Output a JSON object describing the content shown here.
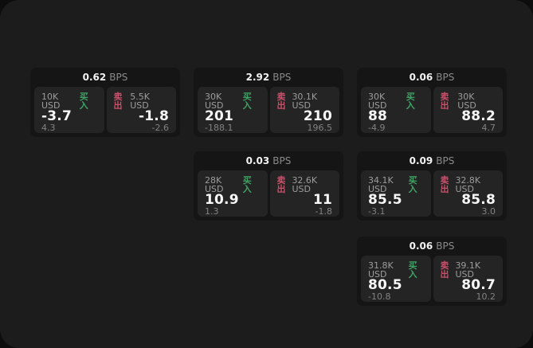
{
  "labels": {
    "bps_unit": "BPS",
    "buy": "买入",
    "sell": "卖出"
  },
  "colors": {
    "outer_background": "#0d0d0d",
    "panel_background": "#1c1c1c",
    "card_background": "#151515",
    "tile_background": "#242424",
    "buy_accent": "#3fa464",
    "sell_accent": "#c9506a",
    "primary_text": "#f7f7f7",
    "muted_text": "#9c9c9c"
  },
  "cards": [
    {
      "bps": "0.62",
      "buy": {
        "amount": "10K USD",
        "price": "-3.7",
        "delta": "4.3"
      },
      "sell": {
        "amount": "5.5K USD",
        "price": "-1.8",
        "delta": "-2.6"
      }
    },
    {
      "bps": "2.92",
      "buy": {
        "amount": "30K USD",
        "price": "201",
        "delta": "-188.1"
      },
      "sell": {
        "amount": "30.1K USD",
        "price": "210",
        "delta": "196.5"
      }
    },
    {
      "bps": "0.03",
      "buy": {
        "amount": "28K USD",
        "price": "10.9",
        "delta": "1.3"
      },
      "sell": {
        "amount": "32.6K USD",
        "price": "11",
        "delta": "-1.8"
      }
    },
    {
      "bps": "0.06",
      "buy": {
        "amount": "30K USD",
        "price": "88",
        "delta": "-4.9"
      },
      "sell": {
        "amount": "30K USD",
        "price": "88.2",
        "delta": "4.7"
      }
    },
    {
      "bps": "0.09",
      "buy": {
        "amount": "34.1K USD",
        "price": "85.5",
        "delta": "-3.1"
      },
      "sell": {
        "amount": "32.8K USD",
        "price": "85.8",
        "delta": "3.0"
      }
    },
    {
      "bps": "0.06",
      "buy": {
        "amount": "31.8K USD",
        "price": "80.5",
        "delta": "-10.8"
      },
      "sell": {
        "amount": "39.1K USD",
        "price": "80.7",
        "delta": "10.2"
      }
    }
  ]
}
